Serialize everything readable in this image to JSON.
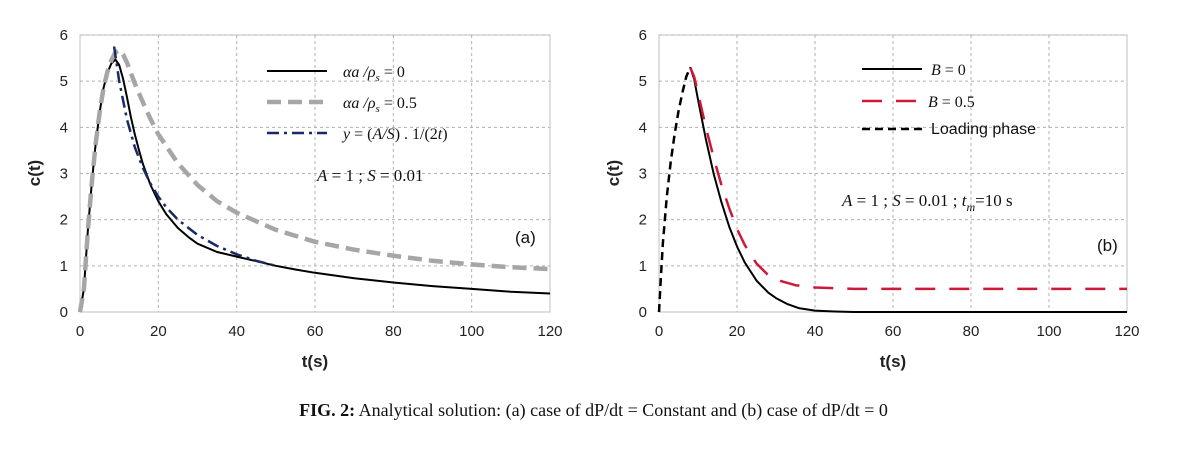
{
  "caption": {
    "label": "FIG. 2:",
    "text": "Analytical solution: (a) case of dP/dt = Constant and (b) case of dP/dt = 0"
  },
  "chart_data": [
    {
      "type": "line",
      "panel_label": "(a)",
      "xlabel": "t(s)",
      "ylabel": "c(t)",
      "xlim": [
        0,
        120
      ],
      "ylim": [
        0,
        6
      ],
      "xticks": [
        0,
        20,
        40,
        60,
        80,
        100,
        120
      ],
      "yticks": [
        0,
        1,
        2,
        3,
        4,
        5,
        6
      ],
      "grid": true,
      "legend_position": "top-right",
      "annotation": "A = 1 ; S = 0.01",
      "series": [
        {
          "name": "αa /ρs = 0",
          "color": "#000000",
          "style": "solid",
          "x": [
            0,
            1,
            2,
            3,
            4,
            5,
            6,
            7,
            8,
            9,
            10,
            11,
            12,
            13,
            14,
            15,
            16,
            18,
            20,
            22,
            25,
            28,
            30,
            35,
            40,
            45,
            50,
            55,
            60,
            70,
            80,
            90,
            100,
            110,
            120
          ],
          "y": [
            0,
            0.5,
            1.75,
            2.8,
            3.65,
            4.32,
            4.85,
            5.18,
            5.38,
            5.47,
            5.35,
            5.05,
            4.65,
            4.22,
            3.85,
            3.52,
            3.22,
            2.75,
            2.4,
            2.12,
            1.82,
            1.6,
            1.48,
            1.3,
            1.2,
            1.1,
            1.0,
            0.92,
            0.85,
            0.73,
            0.64,
            0.56,
            0.5,
            0.44,
            0.4
          ]
        },
        {
          "name": "αa /ρs = 0.5",
          "color": "#a6a6a6",
          "style": "dashed",
          "x": [
            0,
            1,
            2,
            3,
            4,
            5,
            6,
            7,
            8,
            9,
            10,
            11,
            12,
            14,
            16,
            18,
            20,
            25,
            30,
            35,
            40,
            50,
            60,
            70,
            80,
            90,
            100,
            110,
            120
          ],
          "y": [
            0,
            0.5,
            1.75,
            2.8,
            3.65,
            4.32,
            4.85,
            5.2,
            5.45,
            5.62,
            5.67,
            5.58,
            5.4,
            4.95,
            4.55,
            4.18,
            3.85,
            3.22,
            2.75,
            2.4,
            2.15,
            1.78,
            1.52,
            1.35,
            1.22,
            1.11,
            1.03,
            0.97,
            0.93
          ]
        },
        {
          "name": "y = (A/S) . 1/(2t)",
          "color": "#1a2a66",
          "style": "dashdot",
          "x": [
            8.7,
            10,
            12,
            14,
            16,
            18,
            20,
            22,
            25,
            30,
            35,
            40,
            45,
            50
          ],
          "y": [
            5.75,
            5.0,
            4.17,
            3.57,
            3.13,
            2.78,
            2.5,
            2.27,
            2.0,
            1.67,
            1.43,
            1.25,
            1.11,
            1.0
          ]
        }
      ]
    },
    {
      "type": "line",
      "panel_label": "(b)",
      "xlabel": "t(s)",
      "ylabel": "c(t)",
      "xlim": [
        0,
        120
      ],
      "ylim": [
        0,
        6
      ],
      "xticks": [
        0,
        20,
        40,
        60,
        80,
        100,
        120
      ],
      "yticks": [
        0,
        1,
        2,
        3,
        4,
        5,
        6
      ],
      "grid": true,
      "legend_position": "top-right",
      "annotation": "A = 1 ; S = 0.01 ; tm=10 s",
      "series": [
        {
          "name": "B = 0",
          "color": "#000000",
          "style": "solid",
          "x": [
            8,
            9,
            10,
            12,
            14,
            16,
            18,
            20,
            22,
            25,
            28,
            30,
            33,
            36,
            40,
            45,
            50,
            60,
            80,
            100,
            120
          ],
          "y": [
            5.3,
            5.05,
            4.6,
            3.75,
            3.0,
            2.38,
            1.85,
            1.42,
            1.07,
            0.68,
            0.42,
            0.3,
            0.17,
            0.08,
            0.03,
            0.01,
            0,
            0,
            0,
            0,
            0
          ]
        },
        {
          "name": "B = 0.5",
          "color": "#cc1a3a",
          "style": "dashed",
          "x": [
            8,
            9,
            10,
            12,
            14,
            16,
            18,
            20,
            22,
            25,
            28,
            30,
            35,
            40,
            50,
            60,
            80,
            100,
            120
          ],
          "y": [
            5.3,
            5.1,
            4.75,
            4.0,
            3.35,
            2.75,
            2.25,
            1.8,
            1.45,
            1.05,
            0.8,
            0.7,
            0.58,
            0.53,
            0.5,
            0.5,
            0.5,
            0.5,
            0.5
          ]
        },
        {
          "name": "Loading phase",
          "color": "#000000",
          "style": "shortdash",
          "x": [
            0,
            0.5,
            1,
            2,
            3,
            4,
            5,
            6,
            7,
            8
          ],
          "y": [
            0,
            0.8,
            1.5,
            2.5,
            3.25,
            3.85,
            4.35,
            4.75,
            5.1,
            5.3
          ]
        }
      ]
    }
  ]
}
